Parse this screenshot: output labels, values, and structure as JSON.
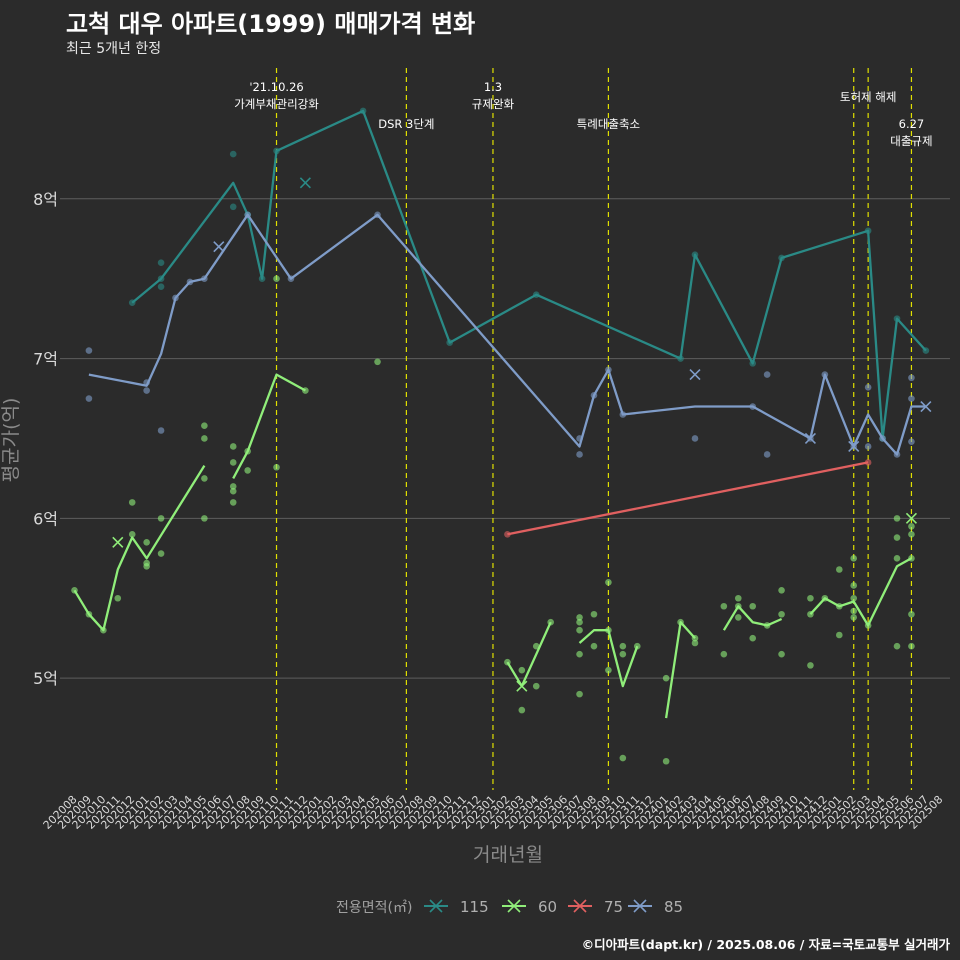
{
  "title": "고척 대우 아파트(1999) 매매가격 변화",
  "subtitle": "최근 5개년 한정",
  "caption": "©디아파트(dapt.kr) / 2025.08.06 / 자료=국토교통부 실거래가",
  "chart_data": {
    "type": "line",
    "xlabel": "거래년월",
    "ylabel": "평균가(억)",
    "ylim": [
      4.3,
      8.9
    ],
    "yticks": [
      5,
      6,
      7,
      8
    ],
    "ytick_labels": [
      "5억",
      "6억",
      "7억",
      "8억"
    ],
    "grid": true,
    "categories": [
      "202008",
      "202009",
      "202010",
      "202011",
      "202012",
      "202101",
      "202102",
      "202103",
      "202104",
      "202105",
      "202106",
      "202107",
      "202108",
      "202109",
      "202110",
      "202111",
      "202112",
      "202201",
      "202202",
      "202203",
      "202204",
      "202205",
      "202206",
      "202207",
      "202208",
      "202209",
      "202210",
      "202211",
      "202212",
      "202301",
      "202302",
      "202303",
      "202304",
      "202305",
      "202306",
      "202307",
      "202308",
      "202309",
      "202310",
      "202311",
      "202312",
      "202401",
      "202402",
      "202403",
      "202404",
      "202405",
      "202406",
      "202407",
      "202408",
      "202409",
      "202410",
      "202411",
      "202412",
      "202501",
      "202502",
      "202503",
      "202504",
      "202505",
      "202506",
      "202507",
      "202508"
    ],
    "legend_title": "전용면적(㎡)",
    "legend_position": "bottom",
    "series": [
      {
        "name": "115",
        "color": "#2a8a86",
        "line": [
          [
            "202012",
            7.35
          ],
          [
            "202102",
            7.5
          ],
          [
            "202107",
            8.1
          ],
          [
            "202108",
            7.9
          ],
          [
            "202109",
            7.5
          ],
          [
            "202110",
            8.3
          ],
          [
            "202204",
            8.55
          ],
          [
            "202210",
            7.1
          ],
          [
            "202304",
            7.4
          ],
          [
            "202402",
            7.0
          ],
          [
            "202403",
            7.65
          ],
          [
            "202407",
            6.97
          ],
          [
            "202409",
            7.63
          ],
          [
            "202503",
            7.8
          ],
          [
            "202504",
            6.5
          ],
          [
            "202505",
            7.25
          ],
          [
            "202507",
            7.05
          ]
        ],
        "points": [
          [
            "202012",
            7.35
          ],
          [
            "202102",
            7.6
          ],
          [
            "202102",
            7.5
          ],
          [
            "202102",
            7.45
          ],
          [
            "202107",
            8.28
          ],
          [
            "202107",
            7.95
          ],
          [
            "202108",
            7.9
          ],
          [
            "202109",
            7.5
          ],
          [
            "202110",
            8.3
          ],
          [
            "202204",
            8.55
          ],
          [
            "202210",
            7.1
          ],
          [
            "202304",
            7.4
          ],
          [
            "202402",
            7.0
          ],
          [
            "202403",
            7.65
          ],
          [
            "202407",
            6.97
          ],
          [
            "202409",
            7.63
          ],
          [
            "202503",
            7.8
          ],
          [
            "202504",
            6.5
          ],
          [
            "202505",
            7.25
          ],
          [
            "202507",
            7.05
          ]
        ],
        "cancelled": [
          [
            "202112",
            8.1
          ]
        ]
      },
      {
        "name": "60",
        "color": "#90ee7a",
        "line_segments": [
          [
            [
              "202008",
              5.55
            ],
            [
              "202009",
              5.4
            ],
            [
              "202010",
              5.3
            ],
            [
              "202011",
              5.68
            ],
            [
              "202012",
              5.88
            ],
            [
              "202101",
              5.75
            ],
            [
              "202105",
              6.33
            ]
          ],
          [
            [
              "202107",
              6.25
            ],
            [
              "202108",
              6.42
            ],
            [
              "202110",
              6.9
            ],
            [
              "202112",
              6.8
            ]
          ],
          [
            [
              "202302",
              5.1
            ],
            [
              "202303",
              4.95
            ],
            [
              "202304",
              5.15
            ],
            [
              "202305",
              5.35
            ]
          ],
          [
            [
              "202307",
              5.22
            ],
            [
              "202308",
              5.3
            ],
            [
              "202309",
              5.3
            ],
            [
              "202310",
              4.95
            ],
            [
              "202311",
              5.2
            ]
          ],
          [
            [
              "202401",
              4.75
            ],
            [
              "202402",
              5.35
            ],
            [
              "202403",
              5.25
            ]
          ],
          [
            [
              "202405",
              5.3
            ],
            [
              "202406",
              5.45
            ],
            [
              "202407",
              5.35
            ],
            [
              "202408",
              5.33
            ],
            [
              "202409",
              5.37
            ]
          ],
          [
            [
              "202411",
              5.4
            ],
            [
              "202412",
              5.5
            ],
            [
              "202501",
              5.45
            ],
            [
              "202502",
              5.48
            ],
            [
              "202503",
              5.33
            ],
            [
              "202505",
              5.7
            ],
            [
              "202506",
              5.75
            ]
          ]
        ],
        "points": [
          [
            "202008",
            5.55
          ],
          [
            "202009",
            5.4
          ],
          [
            "202010",
            5.3
          ],
          [
            "202011",
            5.5
          ],
          [
            "202012",
            6.1
          ],
          [
            "202012",
            5.9
          ],
          [
            "202101",
            5.85
          ],
          [
            "202101",
            5.7
          ],
          [
            "202101",
            5.72
          ],
          [
            "202102",
            5.78
          ],
          [
            "202102",
            6.0
          ],
          [
            "202105",
            6.58
          ],
          [
            "202105",
            6.5
          ],
          [
            "202105",
            6.25
          ],
          [
            "202105",
            6.0
          ],
          [
            "202107",
            6.45
          ],
          [
            "202107",
            6.35
          ],
          [
            "202107",
            6.2
          ],
          [
            "202107",
            6.17
          ],
          [
            "202107",
            6.1
          ],
          [
            "202108",
            6.42
          ],
          [
            "202108",
            6.3
          ],
          [
            "202110",
            7.5
          ],
          [
            "202110",
            6.32
          ],
          [
            "202112",
            6.8
          ],
          [
            "202205",
            6.98
          ],
          [
            "202302",
            5.1
          ],
          [
            "202303",
            5.05
          ],
          [
            "202303",
            4.8
          ],
          [
            "202304",
            5.2
          ],
          [
            "202304",
            4.95
          ],
          [
            "202305",
            5.35
          ],
          [
            "202307",
            5.38
          ],
          [
            "202307",
            5.35
          ],
          [
            "202307",
            5.3
          ],
          [
            "202307",
            5.15
          ],
          [
            "202307",
            4.9
          ],
          [
            "202308",
            5.4
          ],
          [
            "202308",
            5.2
          ],
          [
            "202309",
            5.6
          ],
          [
            "202309",
            5.3
          ],
          [
            "202309",
            5.05
          ],
          [
            "202310",
            5.2
          ],
          [
            "202310",
            5.15
          ],
          [
            "202310",
            4.5
          ],
          [
            "202311",
            5.2
          ],
          [
            "202401",
            5.0
          ],
          [
            "202401",
            4.48
          ],
          [
            "202402",
            5.35
          ],
          [
            "202403",
            5.25
          ],
          [
            "202403",
            5.22
          ],
          [
            "202405",
            5.45
          ],
          [
            "202405",
            5.15
          ],
          [
            "202406",
            5.5
          ],
          [
            "202406",
            5.45
          ],
          [
            "202406",
            5.38
          ],
          [
            "202407",
            5.45
          ],
          [
            "202407",
            5.25
          ],
          [
            "202408",
            5.33
          ],
          [
            "202409",
            5.55
          ],
          [
            "202409",
            5.4
          ],
          [
            "202409",
            5.15
          ],
          [
            "202411",
            5.5
          ],
          [
            "202411",
            5.4
          ],
          [
            "202411",
            5.08
          ],
          [
            "202412",
            5.5
          ],
          [
            "202501",
            5.68
          ],
          [
            "202501",
            5.45
          ],
          [
            "202501",
            5.27
          ],
          [
            "202502",
            5.75
          ],
          [
            "202502",
            5.58
          ],
          [
            "202502",
            5.5
          ],
          [
            "202502",
            5.42
          ],
          [
            "202502",
            5.38
          ],
          [
            "202503",
            5.33
          ],
          [
            "202505",
            6.0
          ],
          [
            "202505",
            5.88
          ],
          [
            "202505",
            5.75
          ],
          [
            "202505",
            5.2
          ],
          [
            "202506",
            5.95
          ],
          [
            "202506",
            5.9
          ],
          [
            "202506",
            5.75
          ],
          [
            "202506",
            5.4
          ],
          [
            "202506",
            5.2
          ]
        ],
        "cancelled": [
          [
            "202011",
            5.85
          ],
          [
            "202303",
            4.95
          ],
          [
            "202506",
            6.0
          ]
        ]
      },
      {
        "name": "75",
        "color": "#e06060",
        "line": [
          [
            "202302",
            5.9
          ],
          [
            "202503",
            6.35
          ]
        ],
        "points": [
          [
            "202302",
            5.9
          ],
          [
            "202503",
            6.35
          ]
        ],
        "cancelled": []
      },
      {
        "name": "85",
        "color": "#7f9cc8",
        "line": [
          [
            "202009",
            6.9
          ],
          [
            "202101",
            6.83
          ],
          [
            "202102",
            7.03
          ],
          [
            "202103",
            7.38
          ],
          [
            "202104",
            7.48
          ],
          [
            "202105",
            7.5
          ],
          [
            "202108",
            7.9
          ],
          [
            "202111",
            7.5
          ],
          [
            "202205",
            7.9
          ],
          [
            "202307",
            6.45
          ],
          [
            "202308",
            6.77
          ],
          [
            "202309",
            6.93
          ],
          [
            "202310",
            6.65
          ],
          [
            "202403",
            6.7
          ],
          [
            "202407",
            6.7
          ],
          [
            "202411",
            6.5
          ],
          [
            "202412",
            6.9
          ],
          [
            "202502",
            6.45
          ],
          [
            "202503",
            6.65
          ],
          [
            "202504",
            6.5
          ],
          [
            "202505",
            6.4
          ],
          [
            "202506",
            6.7
          ],
          [
            "202507",
            6.7
          ]
        ],
        "points": [
          [
            "202009",
            7.05
          ],
          [
            "202009",
            6.75
          ],
          [
            "202101",
            6.85
          ],
          [
            "202101",
            6.8
          ],
          [
            "202102",
            6.55
          ],
          [
            "202103",
            7.38
          ],
          [
            "202104",
            7.48
          ],
          [
            "202105",
            7.5
          ],
          [
            "202108",
            7.9
          ],
          [
            "202111",
            7.5
          ],
          [
            "202205",
            7.9
          ],
          [
            "202307",
            6.5
          ],
          [
            "202307",
            6.4
          ],
          [
            "202308",
            6.77
          ],
          [
            "202309",
            6.93
          ],
          [
            "202310",
            6.65
          ],
          [
            "202403",
            6.5
          ],
          [
            "202407",
            6.7
          ],
          [
            "202408",
            6.9
          ],
          [
            "202408",
            6.4
          ],
          [
            "202411",
            6.5
          ],
          [
            "202412",
            6.9
          ],
          [
            "202502",
            6.45
          ],
          [
            "202503",
            6.82
          ],
          [
            "202503",
            6.45
          ],
          [
            "202504",
            6.5
          ],
          [
            "202505",
            6.4
          ],
          [
            "202506",
            6.88
          ],
          [
            "202506",
            6.75
          ],
          [
            "202506",
            6.48
          ]
        ],
        "cancelled": [
          [
            "202106",
            7.7
          ],
          [
            "202403",
            6.9
          ],
          [
            "202411",
            6.5
          ],
          [
            "202502",
            6.45
          ],
          [
            "202507",
            6.7
          ]
        ]
      }
    ],
    "events": [
      {
        "month": "202110",
        "label": "'21.10.26\n가계부채관리강화",
        "row": 0
      },
      {
        "month": "202207",
        "label": "DSR 3단계",
        "row": 2
      },
      {
        "month": "202301",
        "label": "1.3\n규제완화",
        "row": 0
      },
      {
        "month": "202309",
        "label": "특례대출축소",
        "row": 2
      },
      {
        "month": "202502",
        "label": "",
        "row": 0
      },
      {
        "month": "202503",
        "label": "토허제 해제",
        "row": 1
      },
      {
        "month": "202506",
        "label": "6.27\n대출규제",
        "row": 2
      }
    ]
  }
}
